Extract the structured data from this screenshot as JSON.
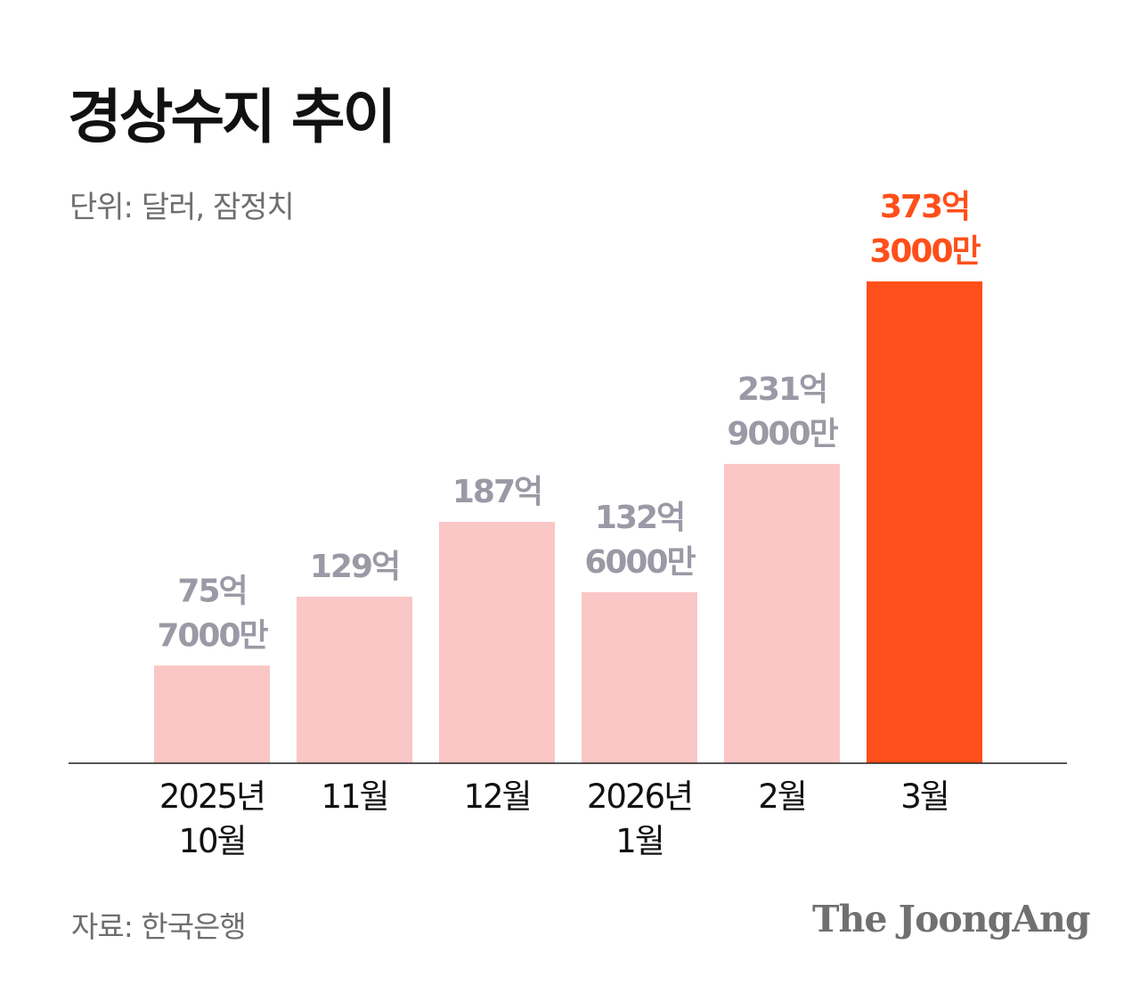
{
  "title": "경상수지 추이",
  "unit_note": "단위: 달러, 잠정치",
  "source": "자료: 한국은행",
  "logo": "The JoongAng",
  "colors": {
    "bar_default": "#fbc6c6",
    "bar_highlight": "#ff4f1a",
    "label_default": "#9a9aa6",
    "label_highlight": "#ff4f1a",
    "axis": "#222222"
  },
  "chart_data": {
    "type": "bar",
    "categories": [
      [
        "2025년",
        "10월"
      ],
      [
        "11월"
      ],
      [
        "12월"
      ],
      [
        "2026년",
        "1월"
      ],
      [
        "2월"
      ],
      [
        "3월"
      ]
    ],
    "values": [
      75.7,
      129,
      187,
      132.6,
      231.9,
      373.3
    ],
    "value_labels": [
      [
        "75억",
        "7000만"
      ],
      [
        "129억"
      ],
      [
        "187억"
      ],
      [
        "132억",
        "6000만"
      ],
      [
        "231억",
        "9000만"
      ],
      [
        "373억",
        "3000만"
      ]
    ],
    "highlight_index": 5,
    "ylim": [
      0,
      373.3
    ]
  }
}
